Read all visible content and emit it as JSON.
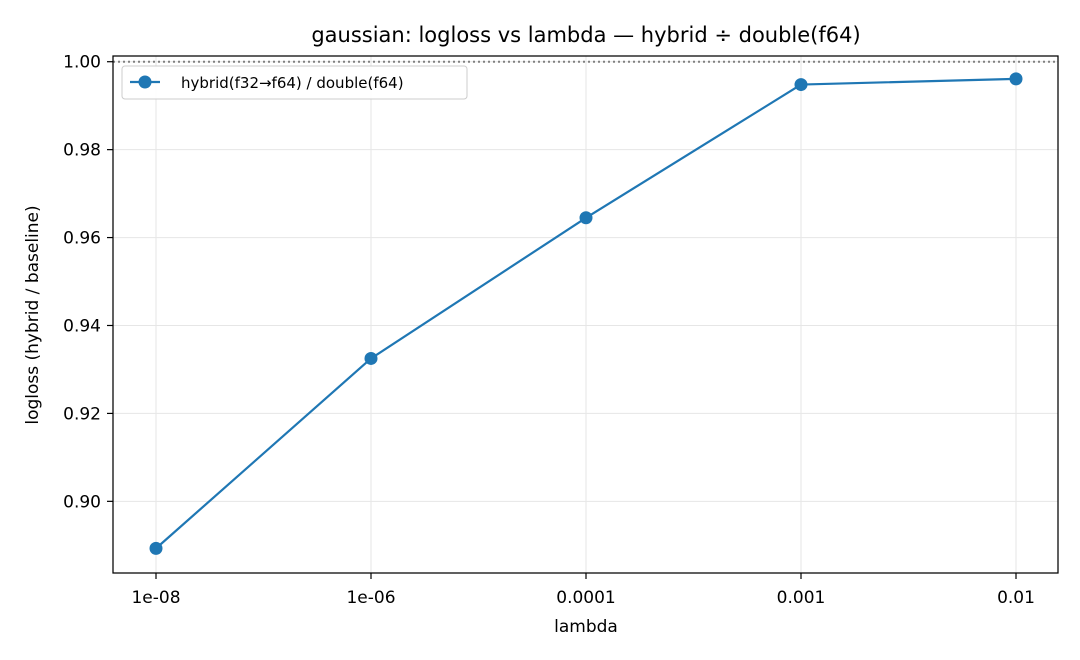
{
  "chart_data": {
    "type": "line",
    "title": "gaussian: logloss vs lambda — hybrid ÷ double(f64)",
    "xlabel": "lambda",
    "ylabel": "logloss (hybrid / baseline)",
    "categories": [
      "1e-08",
      "1e-06",
      "0.0001",
      "0.001",
      "0.01"
    ],
    "series": [
      {
        "name": "hybrid(f32→f64) / double(f64)",
        "color": "#1f77b4",
        "marker": "circle",
        "values": [
          0.8893,
          0.9325,
          0.9645,
          0.9948,
          0.9961
        ]
      }
    ],
    "ylim": [
      0.8837,
      1.0013
    ],
    "yticks": [
      0.9,
      0.92,
      0.94,
      0.96,
      0.98,
      1.0
    ],
    "ytick_labels": [
      "0.90",
      "0.92",
      "0.94",
      "0.96",
      "0.98",
      "1.00"
    ],
    "reference_line": {
      "y": 1.0,
      "style": "dotted",
      "color": "#808080"
    },
    "grid": true,
    "legend_position": "top-left"
  }
}
